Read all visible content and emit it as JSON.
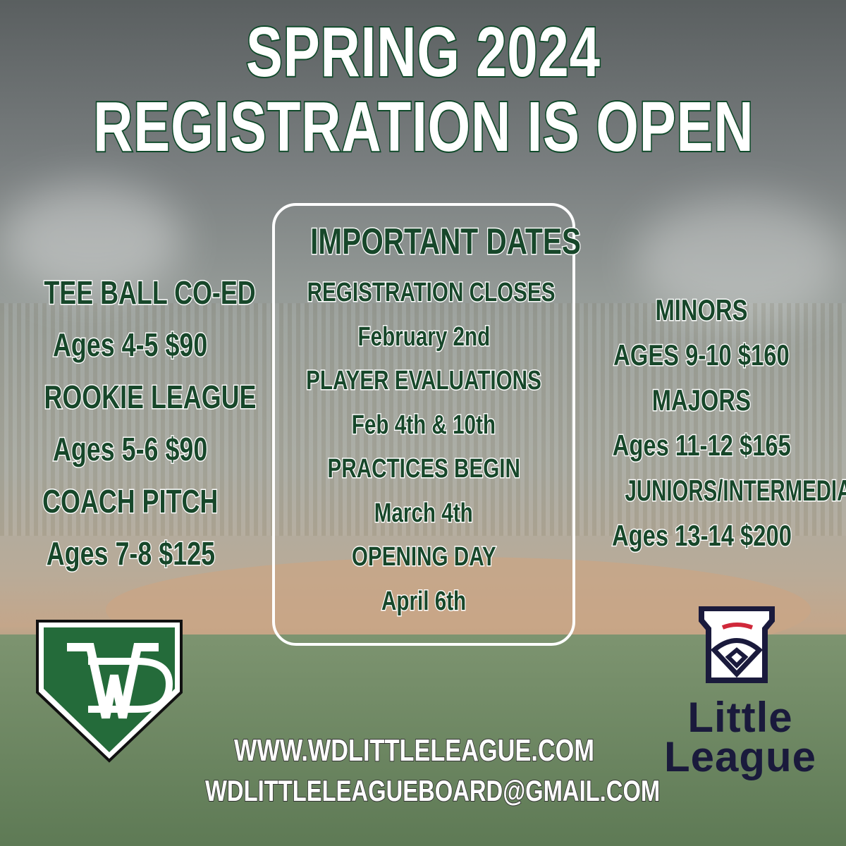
{
  "title": {
    "line1": "SPRING 2024",
    "line2": "REGISTRATION IS OPEN"
  },
  "left_divisions": [
    {
      "name": "TEE BALL CO-ED",
      "details": "Ages 4-5 $90"
    },
    {
      "name": "ROOKIE LEAGUE",
      "details": "Ages 5-6 $90"
    },
    {
      "name": "COACH PITCH",
      "details": "Ages 7-8 $125"
    }
  ],
  "important_dates": {
    "heading": "IMPORTANT DATES",
    "items": [
      {
        "label": "REGISTRATION CLOSES",
        "date": "February 2nd"
      },
      {
        "label": "PLAYER EVALUATIONS",
        "date": "Feb 4th & 10th"
      },
      {
        "label": "PRACTICES BEGIN",
        "date": "March 4th"
      },
      {
        "label": "OPENING DAY",
        "date": "April 6th"
      }
    ]
  },
  "right_divisions": [
    {
      "name": "MINORS",
      "details": "AGES 9-10 $160"
    },
    {
      "name": "MAJORS",
      "details": "Ages 11-12 $165"
    },
    {
      "name": "JUNIORS/INTERMEDIATE",
      "details": "Ages 13-14 $200"
    }
  ],
  "contact": {
    "website": "WWW.WDLITTLELEAGUE.COM",
    "email": "WDLITTLELEAGUEBOARD@GMAIL.COM"
  },
  "logos": {
    "wd": "WD",
    "little_league_line1": "Little",
    "little_league_line2": "League"
  },
  "colors": {
    "green": "#17472a",
    "logo_green": "#246b3a",
    "navy": "#1a1a3c",
    "red": "#d0283a"
  }
}
